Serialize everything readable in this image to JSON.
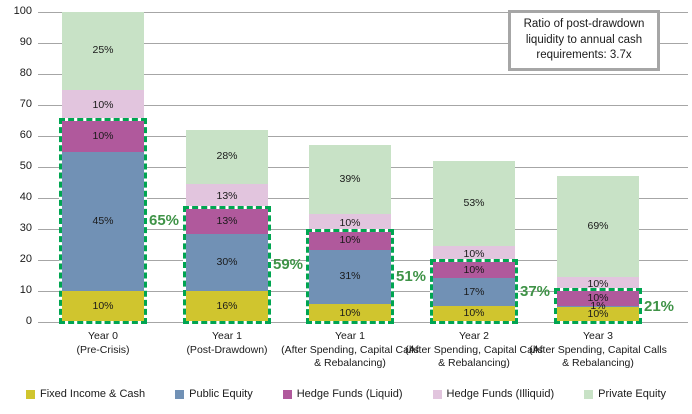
{
  "annotation": {
    "text": "Ratio of post-drawdown liquidity to annual cash requirements: 3.7x"
  },
  "chart_data": {
    "type": "bar",
    "stacked": true,
    "title": "",
    "xlabel": "",
    "ylabel": "",
    "ylim": [
      0,
      100
    ],
    "ytick_interval": 10,
    "grid": true,
    "legend_position": "bottom",
    "categories": [
      {
        "label": "Year 0",
        "sub": "(Pre-Crisis)"
      },
      {
        "label": "Year 1",
        "sub": "(Post-Drawdown)"
      },
      {
        "label": "Year 1",
        "sub": "(After Spending, Capital Calls & Rebalancing)"
      },
      {
        "label": "Year 2",
        "sub": "(After Spending, Capital Calls & Rebalancing)"
      },
      {
        "label": "Year 3",
        "sub": "(After Spending, Capital Calls & Rebalancing)"
      }
    ],
    "bar_totals": [
      100,
      62,
      57,
      52,
      47
    ],
    "series": [
      {
        "name": "Fixed Income & Cash",
        "color": "#d0c52e",
        "pct": [
          10,
          16,
          10,
          10,
          10
        ]
      },
      {
        "name": "Public Equity",
        "color": "#7191b5",
        "pct": [
          45,
          30,
          31,
          17,
          1
        ]
      },
      {
        "name": "Hedge Funds (Liquid)",
        "color": "#b0599c",
        "pct": [
          10,
          13,
          10,
          10,
          10
        ]
      },
      {
        "name": "Hedge Funds (Illiquid)",
        "color": "#e2c5de",
        "pct": [
          10,
          13,
          10,
          10,
          10
        ]
      },
      {
        "name": "Private Equity",
        "color": "#c8e2c6",
        "pct": [
          25,
          28,
          39,
          53,
          69
        ]
      }
    ],
    "liquid_highlight": {
      "description": "dashed box around Fixed Income & Cash + Public Equity + Hedge Funds (Liquid)",
      "labels": [
        "65%",
        "59%",
        "51%",
        "37%",
        "21%"
      ],
      "pct_values": [
        65,
        59,
        51,
        37,
        21
      ],
      "box_color": "#00a551",
      "label_color": "#3f9347"
    },
    "colors": {
      "gridline": "#a6a6a6",
      "text": "#1a1a1a",
      "annotation_border": "#a6a6a6"
    }
  }
}
